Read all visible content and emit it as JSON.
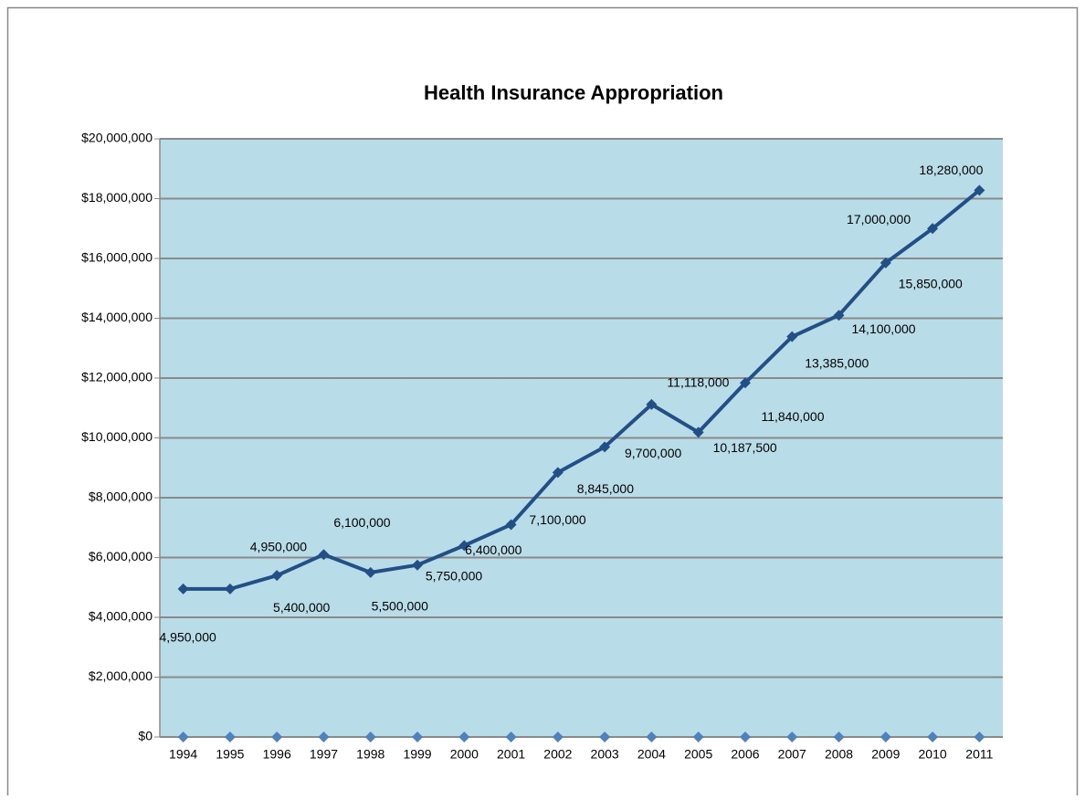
{
  "chart_data": {
    "type": "line",
    "title": "Health Insurance Appropriation",
    "categories": [
      "1994",
      "1995",
      "1996",
      "1997",
      "1998",
      "1999",
      "2000",
      "2001",
      "2002",
      "2003",
      "2004",
      "2005",
      "2006",
      "2007",
      "2008",
      "2009",
      "2010",
      "2011"
    ],
    "series": [
      {
        "color": "#234f87",
        "values": [
          4950000,
          4950000,
          5400000,
          6100000,
          5500000,
          5750000,
          6400000,
          7100000,
          8845000,
          9700000,
          11118000,
          10187500,
          11840000,
          13385000,
          14100000,
          15850000,
          17000000,
          18280000
        ],
        "value_labels": [
          "4,950,000",
          "4,950,000",
          "5,400,000",
          "6,100,000",
          "5,500,000",
          "5,750,000",
          "6,400,000",
          "7,100,000",
          "8,845,000",
          "9,700,000",
          "11,118,000",
          "10,187,500",
          "11,840,000",
          "13,385,000",
          "14,100,000",
          "15,850,000",
          "17,000,000",
          "18,280,000"
        ]
      },
      {
        "color": "#4f81bd",
        "values": [
          0,
          0,
          0,
          0,
          0,
          0,
          0,
          0,
          0,
          0,
          0,
          0,
          0,
          0,
          0,
          0,
          0,
          0
        ]
      }
    ],
    "ylim": [
      0,
      20000000
    ],
    "yticks": [
      {
        "value": 0,
        "label": "$0"
      },
      {
        "value": 2000000,
        "label": "$2,000,000"
      },
      {
        "value": 4000000,
        "label": "$4,000,000"
      },
      {
        "value": 6000000,
        "label": "$6,000,000"
      },
      {
        "value": 8000000,
        "label": "$8,000,000"
      },
      {
        "value": 10000000,
        "label": "$10,000,000"
      },
      {
        "value": 12000000,
        "label": "$12,000,000"
      },
      {
        "value": 14000000,
        "label": "$14,000,000"
      },
      {
        "value": 16000000,
        "label": "$16,000,000"
      },
      {
        "value": 18000000,
        "label": "$18,000,000"
      },
      {
        "value": 20000000,
        "label": "$20,000,000"
      }
    ],
    "grid": true,
    "plot_background": "#b9dde8"
  }
}
